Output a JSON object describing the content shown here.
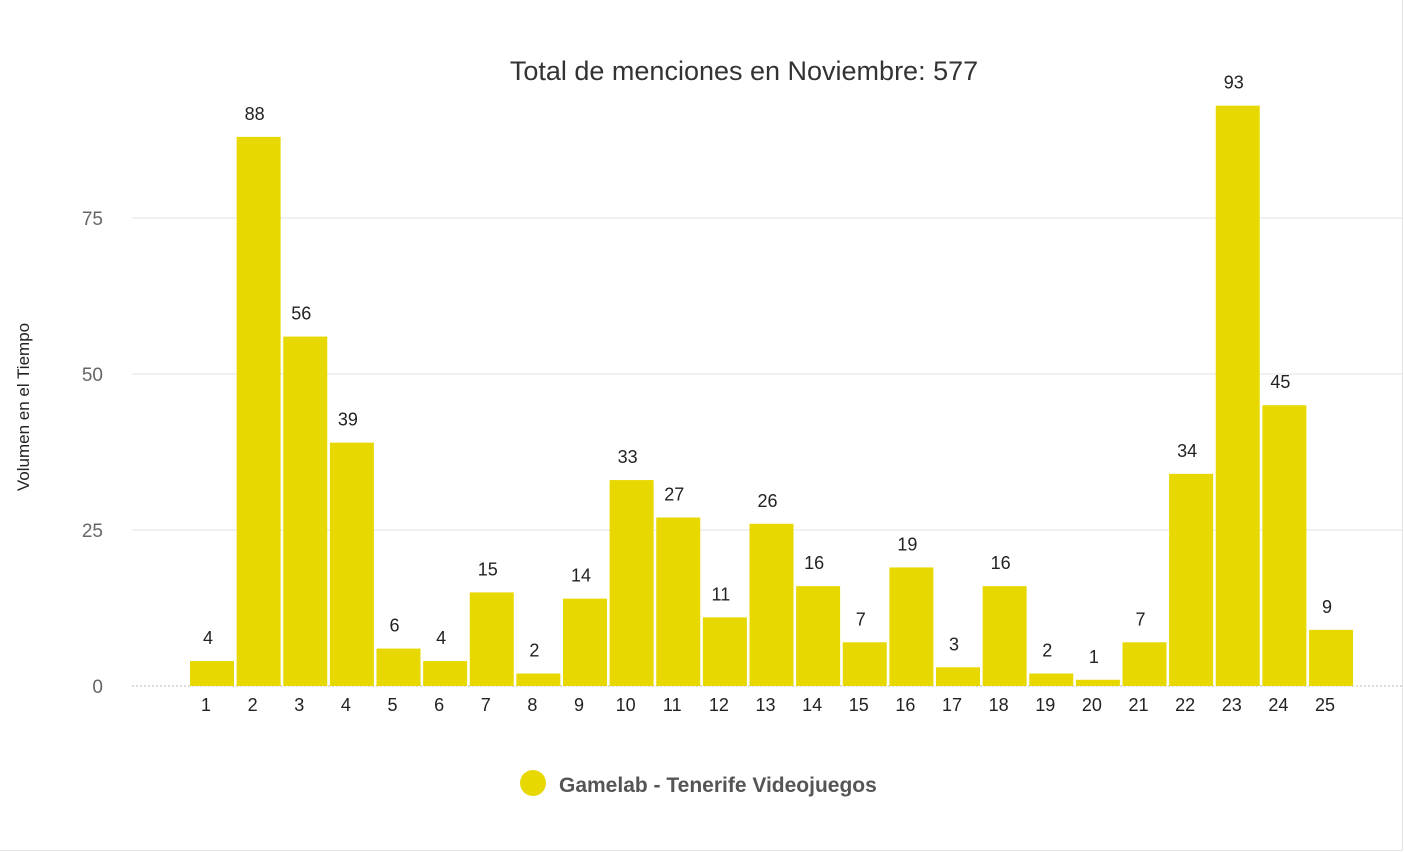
{
  "chart_data": {
    "type": "bar",
    "title": "Total de menciones en Noviembre: 577",
    "xlabel": "",
    "ylabel": "Volumen en el Tiempo",
    "categories": [
      "1",
      "2",
      "3",
      "4",
      "5",
      "6",
      "7",
      "8",
      "9",
      "10",
      "11",
      "12",
      "13",
      "14",
      "15",
      "16",
      "17",
      "18",
      "19",
      "20",
      "21",
      "22",
      "23",
      "24",
      "25"
    ],
    "series": [
      {
        "name": "Gamelab - Tenerife Videojuegos",
        "values": [
          4,
          88,
          56,
          39,
          6,
          4,
          15,
          2,
          14,
          33,
          27,
          11,
          26,
          16,
          7,
          19,
          3,
          16,
          2,
          1,
          7,
          34,
          93,
          45,
          9
        ],
        "color": "#e6d800"
      }
    ],
    "ylim": [
      0,
      93
    ],
    "yticks": [
      0,
      25,
      50,
      75
    ],
    "grid": true,
    "legend": "bottom-center",
    "data_labels": true
  }
}
